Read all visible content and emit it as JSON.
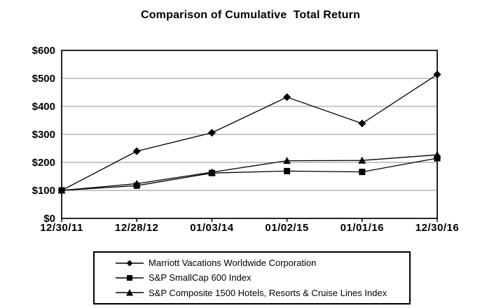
{
  "title": "Comparison of Cumulative  Total Return",
  "chart_data": {
    "type": "line",
    "title": "Comparison of Cumulative  Total Return",
    "xlabel": "",
    "ylabel": "",
    "categories": [
      "12/30/11",
      "12/28/12",
      "01/03/14",
      "01/02/15",
      "01/01/16",
      "12/30/16"
    ],
    "series": [
      {
        "name": "Marriott Vacations Worldwide Corporation",
        "marker": "diamond",
        "values": [
          100,
          240,
          306,
          433,
          339,
          514
        ]
      },
      {
        "name": "S&P SmallCap 600 Index",
        "marker": "square",
        "values": [
          100,
          117,
          162,
          169,
          166,
          215
        ]
      },
      {
        "name": "S&P Composite 1500 Hotels, Resorts & Cruise Lines Index",
        "marker": "triangle",
        "values": [
          100,
          124,
          165,
          206,
          207,
          227
        ]
      }
    ],
    "ylim": [
      0,
      600
    ],
    "ytick_step": 100,
    "ytick_labels": [
      "$0",
      "$100",
      "$200",
      "$300",
      "$400",
      "$500",
      "$600"
    ],
    "grid": "horizontal-gray-lines",
    "legend_position": "bottom-boxed",
    "colors": {
      "series": "#000000",
      "grid": "#8f8f8f",
      "axis": "#000000",
      "background": "#ffffff"
    }
  }
}
